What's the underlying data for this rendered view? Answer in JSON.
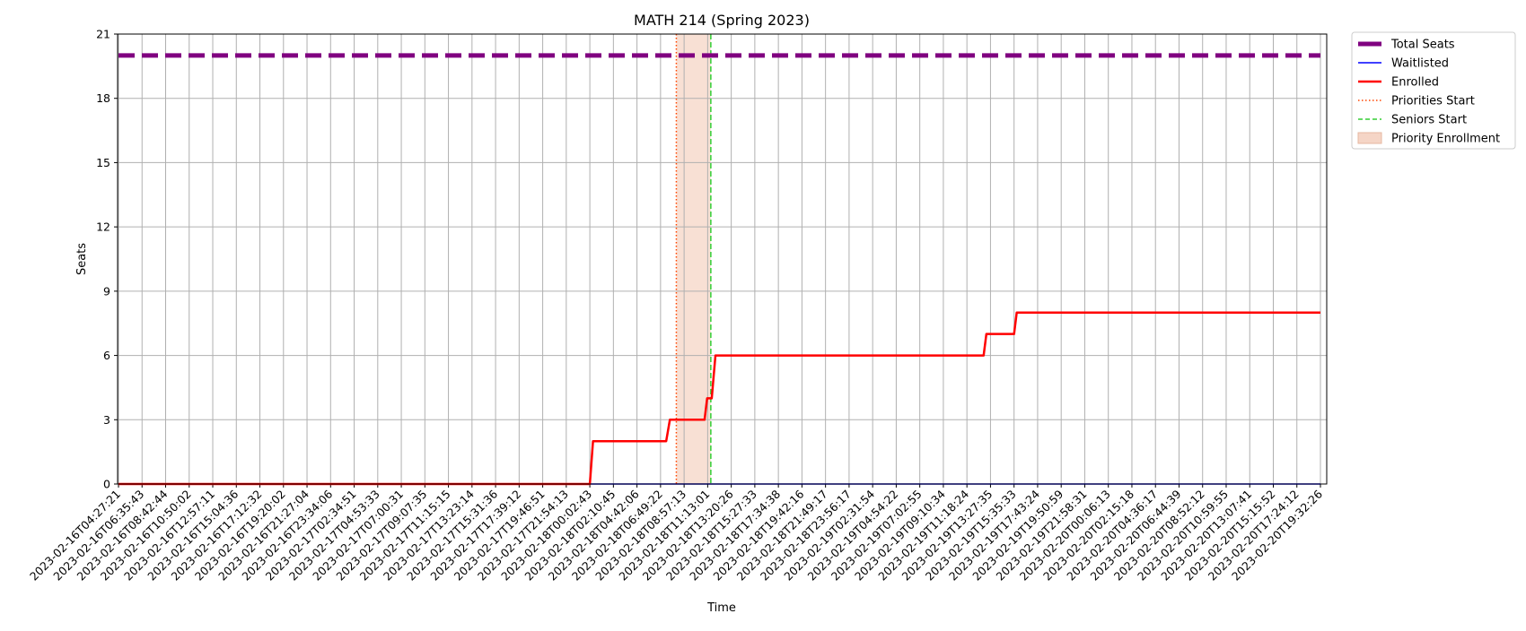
{
  "chart_data": {
    "type": "line",
    "title": "MATH 214 (Spring 2023)",
    "xlabel": "Time",
    "ylabel": "Seats",
    "ylim": [
      0,
      21
    ],
    "yticks": [
      0,
      3,
      6,
      9,
      12,
      15,
      18,
      21
    ],
    "grid": true,
    "legend_position": "outside-top-right",
    "xticks": [
      "2023-02-16T04:27:21",
      "2023-02-16T06:35:43",
      "2023-02-16T08:42:44",
      "2023-02-16T10:50:02",
      "2023-02-16T12:57:11",
      "2023-02-16T15:04:36",
      "2023-02-16T17:12:32",
      "2023-02-16T19:20:02",
      "2023-02-16T21:27:04",
      "2023-02-16T23:34:06",
      "2023-02-17T02:34:51",
      "2023-02-17T04:53:33",
      "2023-02-17T07:00:31",
      "2023-02-17T09:07:35",
      "2023-02-17T11:15:15",
      "2023-02-17T13:23:14",
      "2023-02-17T15:31:36",
      "2023-02-17T17:39:12",
      "2023-02-17T19:46:51",
      "2023-02-17T21:54:13",
      "2023-02-18T00:02:43",
      "2023-02-18T02:10:45",
      "2023-02-18T04:42:06",
      "2023-02-18T06:49:22",
      "2023-02-18T08:57:13",
      "2023-02-18T11:13:01",
      "2023-02-18T13:20:26",
      "2023-02-18T15:27:33",
      "2023-02-18T17:34:38",
      "2023-02-18T19:42:16",
      "2023-02-18T21:49:17",
      "2023-02-18T23:56:17",
      "2023-02-19T02:31:54",
      "2023-02-19T04:54:22",
      "2023-02-19T07:02:55",
      "2023-02-19T09:10:34",
      "2023-02-19T11:18:24",
      "2023-02-19T13:27:35",
      "2023-02-19T15:35:33",
      "2023-02-19T17:43:24",
      "2023-02-19T19:50:59",
      "2023-02-19T21:58:31",
      "2023-02-20T00:06:13",
      "2023-02-20T02:15:18",
      "2023-02-20T04:36:17",
      "2023-02-20T06:44:39",
      "2023-02-20T08:52:12",
      "2023-02-20T10:59:55",
      "2023-02-20T13:07:41",
      "2023-02-20T15:15:52",
      "2023-02-20T17:24:12",
      "2023-02-20T19:32:26"
    ],
    "series": [
      {
        "name": "Total Seats",
        "color": "#800080",
        "style": "dashed",
        "points": [
          [
            "2023-02-16T04:27:21",
            20
          ],
          [
            "2023-02-20T19:32:26",
            20
          ]
        ]
      },
      {
        "name": "Waitlisted",
        "color": "#0000ff",
        "style": "solid",
        "points": [
          [
            "2023-02-16T04:27:21",
            0
          ],
          [
            "2023-02-20T19:32:26",
            0
          ]
        ]
      },
      {
        "name": "Enrolled",
        "color": "#ff0000",
        "style": "solid",
        "points": [
          [
            "2023-02-16T04:27:21",
            0
          ],
          [
            "2023-02-18T00:02:43",
            0
          ],
          [
            "2023-02-18T00:20:00",
            2
          ],
          [
            "2023-02-18T07:20:00",
            2
          ],
          [
            "2023-02-18T07:40:00",
            3
          ],
          [
            "2023-02-18T10:55:00",
            3
          ],
          [
            "2023-02-18T11:10:00",
            4
          ],
          [
            "2023-02-18T11:35:00",
            4
          ],
          [
            "2023-02-18T11:55:00",
            6
          ],
          [
            "2023-02-19T12:50:00",
            6
          ],
          [
            "2023-02-19T13:05:00",
            7
          ],
          [
            "2023-02-19T15:35:33",
            7
          ],
          [
            "2023-02-19T15:50:00",
            8
          ],
          [
            "2023-02-20T19:32:26",
            8
          ]
        ]
      }
    ],
    "markers": [
      {
        "name": "Priorities Start",
        "color": "#ff4500",
        "style": "dotted",
        "x": "2023-02-18T08:15:00"
      },
      {
        "name": "Seniors Start",
        "color": "#32cd32",
        "style": "dashed",
        "x": "2023-02-18T11:30:00"
      }
    ],
    "shaded_region": {
      "name": "Priority Enrollment",
      "color": "#f5d5c6",
      "x_start": "2023-02-18T08:15:00",
      "x_end": "2023-02-18T11:30:00"
    }
  }
}
